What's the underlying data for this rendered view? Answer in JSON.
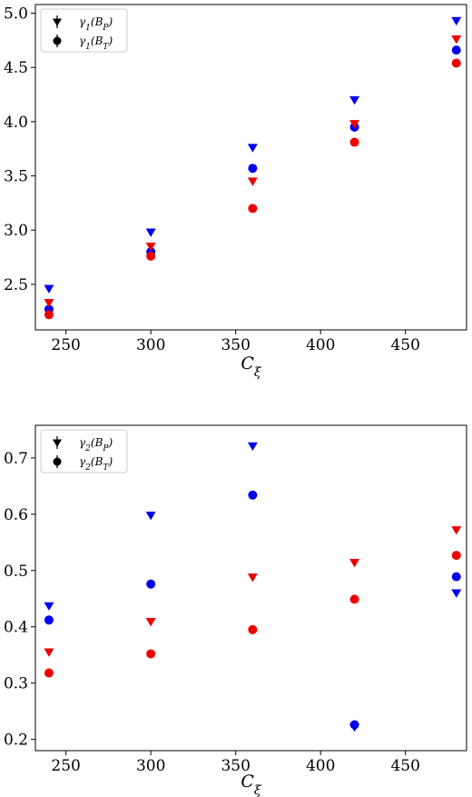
{
  "chart_data": [
    {
      "type": "scatter",
      "title": "",
      "xlabel": "Cξ",
      "ylabel": "",
      "xlim": [
        232,
        486
      ],
      "ylim": [
        2.08,
        5.08
      ],
      "x_ticks": [
        250,
        300,
        350,
        400,
        450
      ],
      "y_ticks": [
        2.5,
        3.0,
        3.5,
        4.0,
        4.5,
        5.0
      ],
      "y_tick_labels": [
        "2.5",
        "3.0",
        "3.5",
        "4.0",
        "4.5",
        "5.0"
      ],
      "legend": {
        "position": "top-left",
        "entries": [
          {
            "label": "γ1(BP)",
            "marker": "triangle-down"
          },
          {
            "label": "γ1(BT)",
            "marker": "circle"
          }
        ]
      },
      "series": [
        {
          "marker": "triangle-down",
          "color": "#0000ee",
          "x": [
            240,
            300,
            360,
            420,
            480
          ],
          "y": [
            2.46,
            2.98,
            3.76,
            4.2,
            4.93
          ]
        },
        {
          "marker": "circle",
          "color": "#0000ee",
          "x": [
            240,
            300,
            360,
            420,
            480
          ],
          "y": [
            2.27,
            2.8,
            3.57,
            3.95,
            4.66
          ]
        },
        {
          "marker": "triangle-down",
          "color": "#ee0000",
          "x": [
            240,
            300,
            360,
            420,
            480
          ],
          "y": [
            2.33,
            2.85,
            3.45,
            3.98,
            4.76
          ]
        },
        {
          "marker": "circle",
          "color": "#ee0000",
          "x": [
            240,
            300,
            360,
            420,
            480
          ],
          "y": [
            2.22,
            2.76,
            3.2,
            3.81,
            4.54
          ]
        }
      ]
    },
    {
      "type": "scatter",
      "title": "",
      "xlabel": "Cξ",
      "ylabel": "",
      "xlim": [
        232,
        486
      ],
      "ylim": [
        0.18,
        0.758
      ],
      "x_ticks": [
        250,
        300,
        350,
        400,
        450
      ],
      "y_ticks": [
        0.2,
        0.3,
        0.4,
        0.5,
        0.6,
        0.7
      ],
      "y_tick_labels": [
        "0.2",
        "0.3",
        "0.4",
        "0.5",
        "0.6",
        "0.7"
      ],
      "legend": {
        "position": "top-left",
        "entries": [
          {
            "label": "γ2(BP)",
            "marker": "triangle-down"
          },
          {
            "label": "γ2(BT)",
            "marker": "circle"
          }
        ]
      },
      "series": [
        {
          "marker": "triangle-down",
          "color": "#0000ee",
          "x": [
            240,
            300,
            360,
            420,
            480
          ],
          "y": [
            0.437,
            0.598,
            0.721,
            0.222,
            0.46
          ]
        },
        {
          "marker": "circle",
          "color": "#0000ee",
          "x": [
            240,
            300,
            360,
            420,
            480
          ],
          "y": [
            0.412,
            0.476,
            0.634,
            0.226,
            0.489
          ]
        },
        {
          "marker": "triangle-down",
          "color": "#ee0000",
          "x": [
            240,
            300,
            360,
            420,
            480
          ],
          "y": [
            0.355,
            0.409,
            0.488,
            0.514,
            0.572
          ]
        },
        {
          "marker": "circle",
          "color": "#ee0000",
          "x": [
            240,
            300,
            360,
            420,
            480
          ],
          "y": [
            0.318,
            0.352,
            0.395,
            0.449,
            0.527
          ]
        }
      ]
    }
  ]
}
